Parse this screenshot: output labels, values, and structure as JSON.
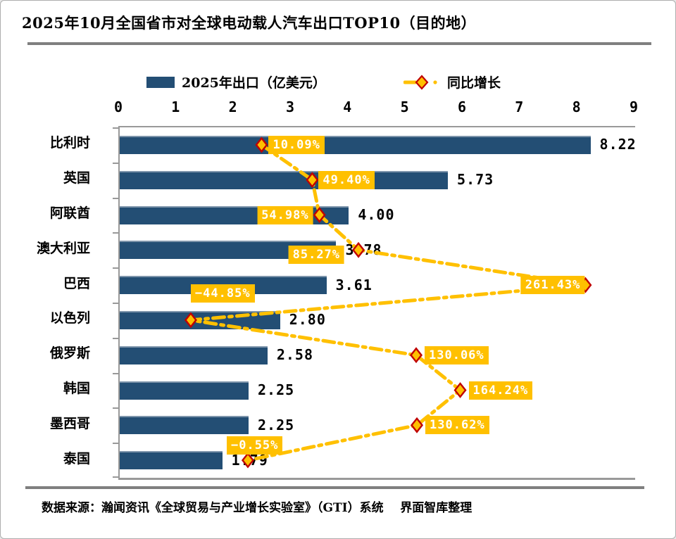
{
  "page": {
    "title": "2025年10月全国省市对全球电动载人汽车出口TOP10（目的地）",
    "source": "数据来源：瀚闻资讯《全球贸易与产业增长实验室》（GTI）系统    界面智库整理"
  },
  "legend": {
    "bar_label": "2025年出口（亿美元）",
    "line_label": "同比增长"
  },
  "colors": {
    "bar": "#234e74",
    "bar_top_edge": "#7e95ab",
    "accent": "#ffc000",
    "diamond_border": "#c00000",
    "label_text": "#ffffff",
    "axis": "#999999",
    "rule": "#7f7f7f"
  },
  "chart_data": {
    "type": "bar",
    "orientation": "horizontal",
    "title": "2025年10月全国省市对全球电动载人汽车出口TOP10（目的地）",
    "legend_position": "top",
    "grid": false,
    "x_axis": {
      "min": 0,
      "max": 9,
      "ticks": [
        "0",
        "1",
        "2",
        "3",
        "4",
        "5",
        "6",
        "7",
        "8",
        "9"
      ]
    },
    "secondary_axis": {
      "min": -100,
      "max": 300,
      "unit": "%"
    },
    "categories": [
      "比利时",
      "英国",
      "阿联酋",
      "澳大利亚",
      "巴西",
      "以色列",
      "俄罗斯",
      "韩国",
      "墨西哥",
      "泰国"
    ],
    "series": [
      {
        "name": "2025年出口（亿美元）",
        "axis": "primary",
        "values": [
          8.22,
          5.73,
          4.0,
          3.78,
          3.61,
          2.8,
          2.58,
          2.25,
          2.25,
          1.79
        ],
        "labels": [
          "8.22",
          "5.73",
          "4.00",
          "3.78",
          "3.61",
          "2.80",
          "2.58",
          "2.25",
          "2.25",
          "1.79"
        ]
      },
      {
        "name": "同比增长",
        "axis": "secondary",
        "unit": "%",
        "values": [
          10.09,
          49.4,
          54.98,
          85.27,
          261.43,
          -44.85,
          130.06,
          164.24,
          130.62,
          -0.55
        ],
        "labels": [
          "10.09%",
          "49.40%",
          "54.98%",
          "85.27%",
          "261.43%",
          "−44.85%",
          "130.06%",
          "164.24%",
          "130.62%",
          "−0.55%"
        ]
      }
    ]
  }
}
